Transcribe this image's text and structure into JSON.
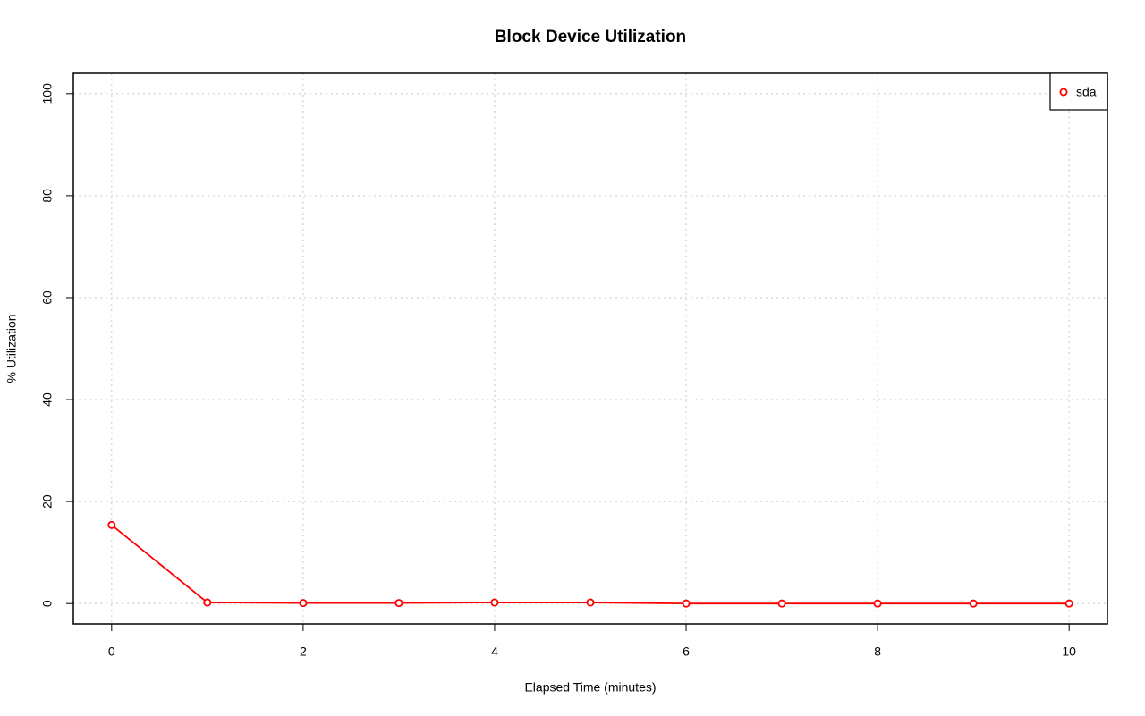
{
  "chart_data": {
    "type": "line",
    "title": "Block Device Utilization",
    "x_label": "Elapsed Time (minutes)",
    "y_label": "% Utilization",
    "x": [
      0,
      1,
      2,
      3,
      4,
      5,
      6,
      7,
      8,
      9,
      10
    ],
    "series": [
      {
        "name": "sda",
        "color": "#ff0000",
        "values": [
          15.4,
          0.2,
          0.1,
          0.1,
          0.2,
          0.2,
          0,
          0,
          0,
          0,
          0
        ]
      }
    ],
    "xlim": [
      -0.4,
      10.4
    ],
    "ylim": [
      -4,
      104
    ],
    "xticks": [
      0,
      2,
      4,
      6,
      8,
      10
    ],
    "yticks": [
      0,
      20,
      40,
      60,
      80,
      100
    ],
    "grid": true,
    "legend": "topright"
  }
}
